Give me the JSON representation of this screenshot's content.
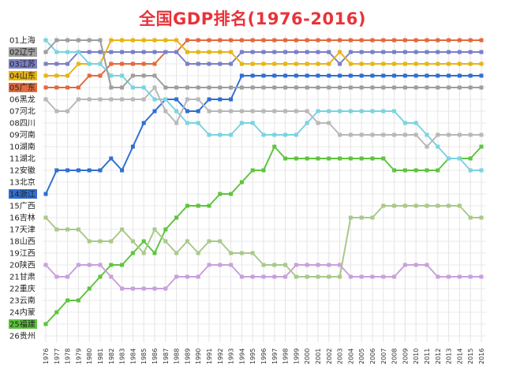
{
  "chart_data": {
    "type": "line",
    "title": "全国GDP排名(1976-2016)",
    "xlabel": "",
    "ylabel": "",
    "x": [
      "1976",
      "1977",
      "1978",
      "1979",
      "1980",
      "1981",
      "1982",
      "1983",
      "1984",
      "1985",
      "1986",
      "1987",
      "1988",
      "1989",
      "1990",
      "1991",
      "1992",
      "1993",
      "1994",
      "1995",
      "1996",
      "1997",
      "1998",
      "1999",
      "2000",
      "2001",
      "2002",
      "2003",
      "2004",
      "2005",
      "2006",
      "2007",
      "2008",
      "2009",
      "2010",
      "2011",
      "2012",
      "2013",
      "2014",
      "2015",
      "2016"
    ],
    "ylim": [
      26,
      1
    ],
    "grid": true,
    "legend": "left",
    "rank_labels": [
      "01上海",
      "02辽宁",
      "03江苏",
      "04山东",
      "05广东",
      "06黑龙",
      "07河北",
      "08四川",
      "09河南",
      "10湖南",
      "11湖北",
      "12安徽",
      "13北京",
      "14浙江",
      "15广西",
      "16吉林",
      "17天津",
      "18山西",
      "19江西",
      "20陕西",
      "21甘肃",
      "22重庆",
      "23云南",
      "24内蒙",
      "25福建",
      "26贵州"
    ],
    "label_highlights": [
      {
        "rank": 2,
        "color": "#9e9e9e"
      },
      {
        "rank": 3,
        "color": "#7b7fc6"
      },
      {
        "rank": 4,
        "color": "#e7b416"
      },
      {
        "rank": 5,
        "color": "#e26a3c"
      },
      {
        "rank": 14,
        "color": "#2f6fd1"
      },
      {
        "rank": 25,
        "color": "#5ec43e"
      }
    ],
    "series": [
      {
        "name": "",
        "color": "#e26a3c",
        "values": [
          5,
          5,
          5,
          5,
          4,
          4,
          3,
          3,
          3,
          3,
          3,
          2,
          2,
          1,
          1,
          1,
          1,
          1,
          1,
          1,
          1,
          1,
          1,
          1,
          1,
          1,
          1,
          1,
          1,
          1,
          1,
          1,
          1,
          1,
          1,
          1,
          1,
          1,
          1,
          1,
          1
        ]
      },
      {
        "name": "",
        "color": "#7b7fc6",
        "values": [
          3,
          3,
          3,
          2,
          2,
          2,
          2,
          2,
          2,
          2,
          2,
          2,
          2,
          3,
          3,
          3,
          3,
          3,
          2,
          2,
          2,
          2,
          2,
          2,
          2,
          2,
          2,
          3,
          2,
          2,
          2,
          2,
          2,
          2,
          2,
          2,
          2,
          2,
          2,
          2,
          2
        ]
      },
      {
        "name": "",
        "color": "#e7b416",
        "values": [
          4,
          4,
          4,
          3,
          3,
          3,
          1,
          1,
          1,
          1,
          1,
          1,
          1,
          2,
          2,
          2,
          2,
          2,
          3,
          3,
          3,
          3,
          3,
          3,
          3,
          3,
          3,
          2,
          3,
          3,
          3,
          3,
          3,
          3,
          3,
          3,
          3,
          3,
          3,
          3,
          3
        ]
      },
      {
        "name": "",
        "color": "#2f6fd1",
        "values": [
          14,
          12,
          12,
          12,
          12,
          12,
          11,
          12,
          10,
          8,
          7,
          6,
          6,
          7,
          7,
          6,
          6,
          6,
          4,
          4,
          4,
          4,
          4,
          4,
          4,
          4,
          4,
          4,
          4,
          4,
          4,
          4,
          4,
          4,
          4,
          4,
          4,
          4,
          4,
          4,
          4
        ]
      },
      {
        "name": "",
        "color": "#5ec43e",
        "values": [
          25,
          24,
          23,
          23,
          22,
          21,
          20,
          20,
          19,
          18,
          19,
          17,
          16,
          15,
          15,
          15,
          14,
          14,
          13,
          12,
          12,
          10,
          11,
          11,
          11,
          11,
          11,
          11,
          11,
          11,
          11,
          11,
          12,
          12,
          12,
          12,
          12,
          11,
          11,
          11,
          10
        ]
      },
      {
        "name": "",
        "color": "#7ad3e0",
        "values": [
          1,
          2,
          2,
          2,
          3,
          3,
          4,
          4,
          5,
          5,
          6,
          6,
          7,
          8,
          8,
          9,
          9,
          9,
          8,
          8,
          9,
          9,
          9,
          9,
          8,
          7,
          7,
          7,
          7,
          7,
          7,
          7,
          7,
          8,
          8,
          9,
          10,
          11,
          11,
          12,
          12
        ]
      },
      {
        "name": "",
        "color": "#9e9e9e",
        "values": [
          2,
          1,
          1,
          1,
          1,
          1,
          5,
          5,
          4,
          4,
          4,
          5,
          5,
          5,
          5,
          5,
          5,
          5,
          5,
          5,
          5,
          5,
          5,
          5,
          5,
          5,
          5,
          5,
          5,
          5,
          5,
          5,
          5,
          5,
          5,
          5,
          5,
          5,
          5,
          5,
          5
        ]
      },
      {
        "name": "",
        "color": "#b8b8b8",
        "values": [
          6,
          7,
          7,
          6,
          6,
          6,
          6,
          6,
          6,
          6,
          5,
          7,
          8,
          6,
          6,
          7,
          7,
          7,
          7,
          7,
          7,
          7,
          7,
          7,
          7,
          8,
          8,
          9,
          9,
          9,
          9,
          9,
          9,
          9,
          9,
          10,
          9,
          9,
          9,
          9,
          9
        ]
      },
      {
        "name": "",
        "color": "#c9a0dc",
        "values": [
          20,
          21,
          21,
          20,
          20,
          20,
          21,
          22,
          22,
          22,
          22,
          22,
          21,
          21,
          21,
          20,
          20,
          20,
          21,
          21,
          21,
          21,
          21,
          20,
          20,
          20,
          20,
          20,
          21,
          21,
          21,
          21,
          21,
          20,
          20,
          20,
          21,
          21,
          21,
          21,
          21
        ]
      },
      {
        "name": "",
        "color": "#a8c98a",
        "values": [
          16,
          17,
          17,
          17,
          18,
          18,
          18,
          17,
          18,
          19,
          17,
          18,
          19,
          18,
          19,
          18,
          18,
          19,
          19,
          19,
          20,
          20,
          20,
          21,
          21,
          21,
          21,
          21,
          16,
          16,
          16,
          15,
          15,
          15,
          15,
          15,
          15,
          15,
          15,
          16,
          16
        ]
      }
    ]
  }
}
